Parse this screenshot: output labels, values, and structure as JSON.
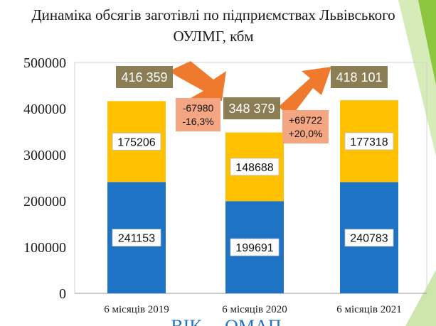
{
  "title_line1": "Динаміка обсягів заготівлі по підприємствах Львівського",
  "title_line2": "ОУЛМГ, кбм",
  "chart_data": {
    "type": "bar",
    "stacked": true,
    "title": "Динаміка обсягів заготівлі по підприємствах Львівського ОУЛМГ, кбм",
    "xlabel": "",
    "ylabel": "",
    "categories": [
      "6 місяців 2019",
      "6 місяців 2020",
      "6 місяців 2021"
    ],
    "series": [
      {
        "values": [
          241153,
          199691,
          240783
        ],
        "color": "#1f73c4"
      },
      {
        "values": [
          175206,
          148688,
          177318
        ],
        "color": "#ffc000"
      }
    ],
    "totals": [
      "416 359",
      "348 379",
      "418 101"
    ],
    "changes": [
      {
        "line1": "-67980",
        "line2": "-16,3%"
      },
      {
        "line1": "+69722",
        "line2": "+20,0%"
      }
    ],
    "ylim": [
      0,
      500000
    ],
    "yticks": [
      "0",
      "100000",
      "200000",
      "300000",
      "400000",
      "500000"
    ],
    "grid": false,
    "legend": "none"
  },
  "colors": {
    "total_box": "#8b7d54",
    "change_box": "#f4a582",
    "arrow": "#ef7a2e",
    "green_accent": "#8cc63f",
    "axis": "#9a9a9a"
  },
  "footer_partial": "ВІК… ОМАП"
}
